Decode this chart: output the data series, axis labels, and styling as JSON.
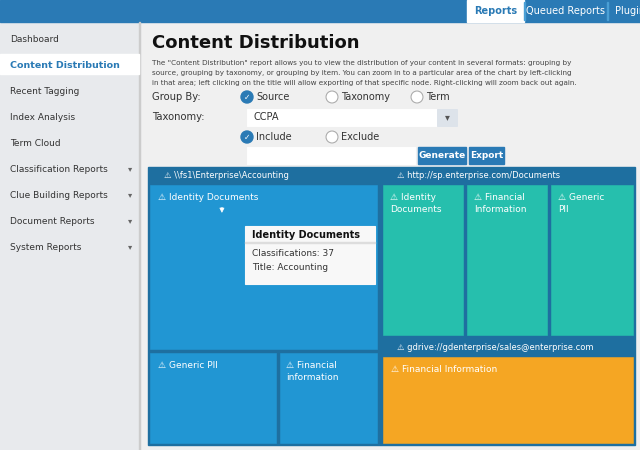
{
  "bg_color": "#f0f0f0",
  "top_bar_color": "#2a7ab5",
  "sidebar_color": "#e8eaed",
  "sidebar_active_text": "#2a7ab5",
  "sidebar_items": [
    "Dashboard",
    "Content Distribution",
    "Recent Tagging",
    "Index Analysis",
    "Term Cloud",
    "Classification Reports",
    "Clue Building Reports",
    "Document Reports",
    "System Reports"
  ],
  "sidebar_items_with_arrow": [
    "Classification Reports",
    "Clue Building Reports",
    "Document Reports",
    "System Reports"
  ],
  "top_tabs": [
    "Reports",
    "Queued Reports",
    "Plugins"
  ],
  "top_tab_active": "Reports",
  "title": "Content Distribution",
  "desc_line1": "The \"Content Distribution\" report allows you to view the distribution of your content in several formats: grouping by",
  "desc_line2": "source, grouping by taxonomy, or grouping by item. You can zoom in to a particular area of the chart by left-clicking",
  "desc_line3": "in that area; left clicking on the title will allow exporting of that specific node. Right-clicking will zoom back out again.",
  "group_by_label": "Group By:",
  "group_by_options": [
    "Source",
    "Taxonomy",
    "Term"
  ],
  "group_by_selected": "Source",
  "taxonomy_label": "Taxonomy:",
  "taxonomy_value": "CCPA",
  "include_exclude": [
    "Include",
    "Exclude"
  ],
  "include_selected": "Include",
  "btn_generate": "Generate",
  "btn_export": "Export",
  "btn_color": "#2a7ab5",
  "chart_bg": "#1e6fa0",
  "tile_blue": "#2196d3",
  "tile_teal": "#26bfad",
  "tile_orange": "#f5a623",
  "tooltip_bg": "#f8f8f8",
  "tooltip_border": "#cccccc",
  "sec0_label": "\\\\fs1\\Enterprise\\Accounting",
  "sec1_label": "http://sp.enterprise.com/Documents",
  "sec2_label": "gdrive://gdenterprise/sales@enterprise.com",
  "tooltip_title": "Identity Documents",
  "tooltip_line1": "Classifications: 37",
  "tooltip_line2": "Title: Accounting"
}
